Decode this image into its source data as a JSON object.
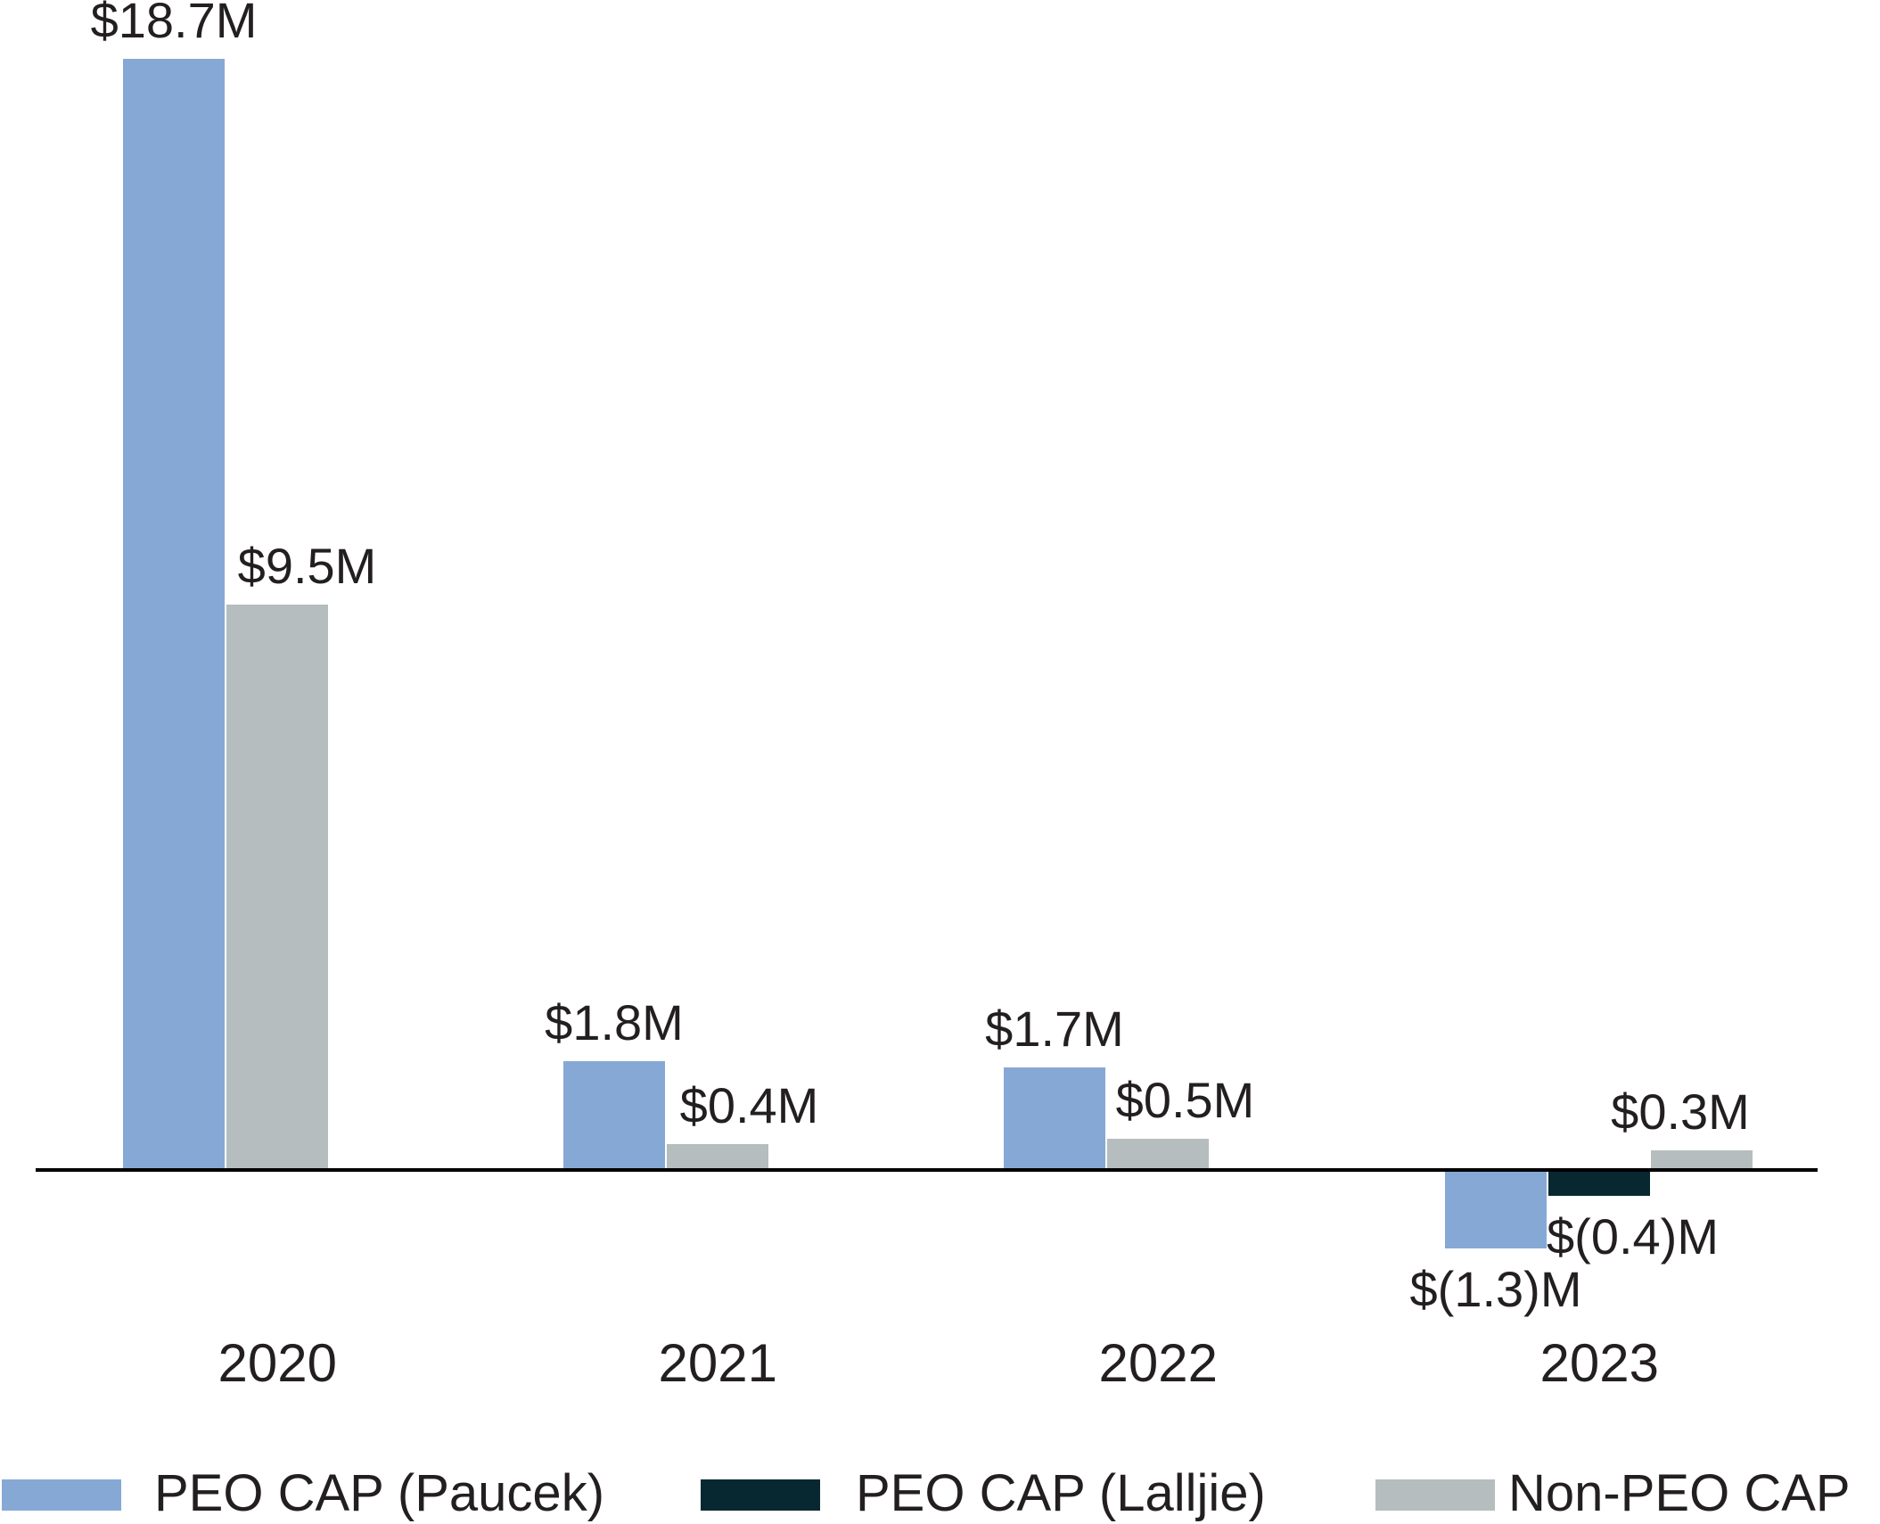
{
  "chart_data": {
    "type": "bar",
    "title": "",
    "categories": [
      "2020",
      "2021",
      "2022",
      "2023"
    ],
    "series": [
      {
        "name": "PEO CAP (Paucek)",
        "color": "#86a8d5",
        "values": [
          18.7,
          1.8,
          1.7,
          -1.3
        ],
        "value_labels": [
          "$18.7M",
          "$1.8M",
          "$1.7M",
          "$(1.3)M"
        ],
        "label_dx": [
          0,
          0,
          0,
          0
        ]
      },
      {
        "name": "PEO CAP (Lalljie)",
        "color": "#082831",
        "values": [
          null,
          null,
          null,
          -0.4
        ],
        "value_labels": [
          null,
          null,
          null,
          "$(0.4)M"
        ],
        "label_dx": [
          null,
          null,
          null,
          38
        ]
      },
      {
        "name": "Non-PEO CAP",
        "color": "#b5bdbe",
        "values": [
          9.5,
          0.4,
          0.5,
          0.3
        ],
        "value_labels": [
          "$9.5M",
          "$0.4M",
          "$0.5M",
          "$0.3M"
        ],
        "label_dx": [
          34,
          36,
          31,
          -24
        ]
      }
    ],
    "xlabel": "",
    "ylabel": "",
    "units": "$M",
    "ylim": [
      -1.5,
      19.7
    ],
    "grid": false,
    "y_axis_visible": false,
    "legend_position": "bottom",
    "axis_color": "#000000",
    "text_color": "#231f20"
  }
}
